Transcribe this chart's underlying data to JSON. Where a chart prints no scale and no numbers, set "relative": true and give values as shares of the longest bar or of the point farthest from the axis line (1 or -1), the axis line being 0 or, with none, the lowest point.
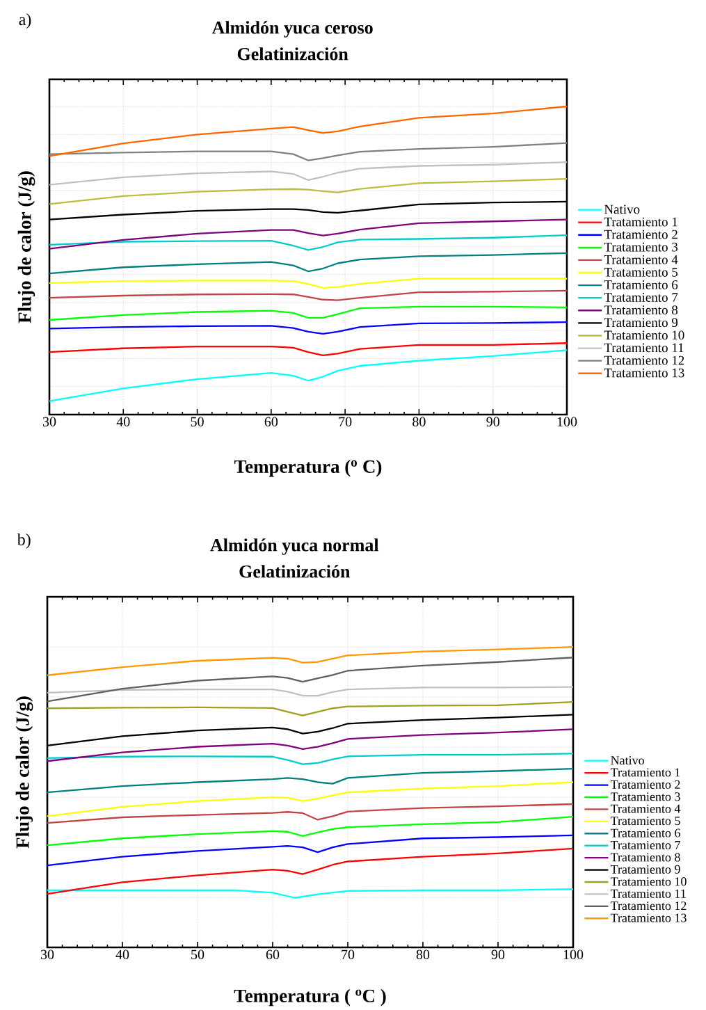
{
  "chart_data": [
    {
      "type": "line",
      "relative": true,
      "title": "Almidón yuca ceroso",
      "subtitle": "Gelatinización",
      "xlabel": "Temperatura ($^{o}$ C)",
      "ylabel": "Flujo de calor (J/g)",
      "annotations": [
        "a)"
      ],
      "x": [
        30,
        40,
        50,
        60,
        63,
        65,
        67,
        69,
        72,
        80,
        90,
        100
      ],
      "xlim": [
        30,
        100
      ],
      "xticks": [
        30,
        40,
        50,
        60,
        70,
        80,
        90,
        100
      ],
      "grid": true,
      "legend": "right",
      "series": [
        {
          "name": "Nativo",
          "color": "#00ffff",
          "values": [
            0.044,
            0.085,
            0.115,
            0.135,
            0.126,
            0.11,
            0.123,
            0.142,
            0.158,
            0.175,
            0.19,
            0.209
          ]
        },
        {
          "name": "Tratamiento 1",
          "color": "#ff0000",
          "values": [
            0.203,
            0.215,
            0.221,
            0.221,
            0.217,
            0.203,
            0.192,
            0.198,
            0.213,
            0.226,
            0.226,
            0.232
          ]
        },
        {
          "name": "Tratamiento 2",
          "color": "#0000ff",
          "values": [
            0.279,
            0.284,
            0.287,
            0.288,
            0.281,
            0.269,
            0.262,
            0.269,
            0.284,
            0.296,
            0.297,
            0.3
          ]
        },
        {
          "name": "Tratamiento 3",
          "color": "#00ff00",
          "values": [
            0.307,
            0.323,
            0.333,
            0.337,
            0.33,
            0.314,
            0.314,
            0.326,
            0.345,
            0.35,
            0.35,
            0.348
          ]
        },
        {
          "name": "Tratamiento 4",
          "color": "#c04545",
          "values": [
            0.379,
            0.386,
            0.39,
            0.391,
            0.39,
            0.382,
            0.373,
            0.371,
            0.379,
            0.397,
            0.399,
            0.402
          ]
        },
        {
          "name": "Tratamiento 5",
          "color": "#ffff00",
          "values": [
            0.427,
            0.433,
            0.435,
            0.435,
            0.433,
            0.424,
            0.411,
            0.414,
            0.424,
            0.441,
            0.441,
            0.441
          ]
        },
        {
          "name": "Tratamiento 6",
          "color": "#008080",
          "values": [
            0.458,
            0.478,
            0.488,
            0.495,
            0.484,
            0.465,
            0.474,
            0.491,
            0.503,
            0.514,
            0.518,
            0.524
          ]
        },
        {
          "name": "Tratamiento 7",
          "color": "#00cccc",
          "values": [
            0.551,
            0.561,
            0.563,
            0.564,
            0.548,
            0.534,
            0.544,
            0.559,
            0.568,
            0.57,
            0.574,
            0.582
          ]
        },
        {
          "name": "Tratamiento 8",
          "color": "#800080",
          "values": [
            0.538,
            0.567,
            0.587,
            0.599,
            0.599,
            0.589,
            0.581,
            0.587,
            0.6,
            0.621,
            0.627,
            0.633
          ]
        },
        {
          "name": "Tratamiento 9",
          "color": "#000000",
          "values": [
            0.633,
            0.649,
            0.661,
            0.667,
            0.667,
            0.664,
            0.657,
            0.655,
            0.662,
            0.682,
            0.688,
            0.691
          ]
        },
        {
          "name": "Tratamiento 10",
          "color": "#bcbc40",
          "values": [
            0.683,
            0.709,
            0.723,
            0.731,
            0.732,
            0.73,
            0.725,
            0.721,
            0.732,
            0.751,
            0.757,
            0.765
          ]
        },
        {
          "name": "Tratamiento 11",
          "color": "#c0c0c0",
          "values": [
            0.746,
            0.77,
            0.783,
            0.789,
            0.781,
            0.761,
            0.772,
            0.785,
            0.798,
            0.807,
            0.811,
            0.819
          ]
        },
        {
          "name": "Tratamiento 12",
          "color": "#808080",
          "values": [
            0.845,
            0.85,
            0.854,
            0.854,
            0.845,
            0.825,
            0.832,
            0.841,
            0.853,
            0.862,
            0.869,
            0.881
          ]
        },
        {
          "name": "Tratamiento 13",
          "color": "#ff6600",
          "values": [
            0.839,
            0.88,
            0.909,
            0.928,
            0.933,
            0.923,
            0.914,
            0.919,
            0.935,
            0.963,
            0.977,
            1.0
          ]
        }
      ]
    },
    {
      "type": "line",
      "relative": true,
      "title": "Almidón yuca normal",
      "subtitle": "Gelatinización",
      "xlabel": "Temperatura ( $^{o}$C )",
      "ylabel": "Flujo de calor (J/g)",
      "annotations": [
        "b)"
      ],
      "x": [
        30,
        40,
        50,
        60,
        62,
        64,
        66,
        68,
        70,
        80,
        90,
        100
      ],
      "xlim": [
        30,
        100
      ],
      "xticks": [
        30,
        40,
        50,
        60,
        70,
        80,
        90,
        100
      ],
      "grid": true,
      "legend": "right",
      "series": [
        {
          "name": "Nativo",
          "color": "#00ffff",
          "x": [
            30,
            40,
            50,
            55,
            60,
            63,
            66,
            70,
            80,
            90,
            100
          ],
          "values": [
            0.19,
            0.19,
            0.19,
            0.19,
            0.182,
            0.165,
            0.177,
            0.188,
            0.19,
            0.19,
            0.194
          ]
        },
        {
          "name": "Tratamiento 1",
          "color": "#ff0000",
          "values": [
            0.178,
            0.217,
            0.24,
            0.259,
            0.255,
            0.244,
            0.259,
            0.275,
            0.286,
            0.302,
            0.313,
            0.329
          ]
        },
        {
          "name": "Tratamiento 2",
          "color": "#0000ff",
          "values": [
            0.273,
            0.302,
            0.321,
            0.335,
            0.338,
            0.333,
            0.317,
            0.333,
            0.344,
            0.363,
            0.367,
            0.373
          ]
        },
        {
          "name": "Tratamiento 3",
          "color": "#00ff00",
          "values": [
            0.34,
            0.363,
            0.377,
            0.387,
            0.385,
            0.371,
            0.383,
            0.394,
            0.4,
            0.41,
            0.417,
            0.435
          ]
        },
        {
          "name": "Tratamiento 4",
          "color": "#c04545",
          "values": [
            0.414,
            0.433,
            0.441,
            0.448,
            0.451,
            0.447,
            0.425,
            0.437,
            0.452,
            0.464,
            0.47,
            0.477
          ]
        },
        {
          "name": "Tratamiento 5",
          "color": "#ffff00",
          "values": [
            0.437,
            0.468,
            0.487,
            0.5,
            0.498,
            0.487,
            0.495,
            0.506,
            0.516,
            0.529,
            0.537,
            0.55
          ]
        },
        {
          "name": "Tratamiento 6",
          "color": "#008080",
          "values": [
            0.516,
            0.537,
            0.55,
            0.56,
            0.564,
            0.56,
            0.55,
            0.545,
            0.564,
            0.581,
            0.587,
            0.595
          ]
        },
        {
          "name": "Tratamiento 7",
          "color": "#00cccc",
          "values": [
            0.63,
            0.635,
            0.636,
            0.635,
            0.624,
            0.61,
            0.614,
            0.626,
            0.636,
            0.641,
            0.641,
            0.645
          ]
        },
        {
          "name": "Tratamiento 8",
          "color": "#800080",
          "values": [
            0.62,
            0.649,
            0.668,
            0.678,
            0.672,
            0.66,
            0.668,
            0.68,
            0.694,
            0.707,
            0.715,
            0.726
          ]
        },
        {
          "name": "Tratamiento 9",
          "color": "#000000",
          "values": [
            0.672,
            0.703,
            0.722,
            0.732,
            0.726,
            0.712,
            0.718,
            0.73,
            0.745,
            0.757,
            0.765,
            0.775
          ]
        },
        {
          "name": "Tratamiento 10",
          "color": "#a0a020",
          "values": [
            0.796,
            0.798,
            0.799,
            0.797,
            0.784,
            0.772,
            0.784,
            0.796,
            0.802,
            0.805,
            0.806,
            0.817
          ]
        },
        {
          "name": "Tratamiento 11",
          "color": "#c0c0c0",
          "values": [
            0.848,
            0.857,
            0.859,
            0.859,
            0.851,
            0.838,
            0.838,
            0.85,
            0.859,
            0.865,
            0.865,
            0.867
          ]
        },
        {
          "name": "Tratamiento 12",
          "color": "#606060",
          "values": [
            0.819,
            0.861,
            0.888,
            0.902,
            0.897,
            0.884,
            0.896,
            0.907,
            0.921,
            0.938,
            0.95,
            0.965
          ]
        },
        {
          "name": "Tratamiento 13",
          "color": "#ff9900",
          "values": [
            0.906,
            0.933,
            0.954,
            0.964,
            0.961,
            0.948,
            0.95,
            0.961,
            0.972,
            0.985,
            0.992,
            1.0
          ]
        }
      ]
    }
  ]
}
